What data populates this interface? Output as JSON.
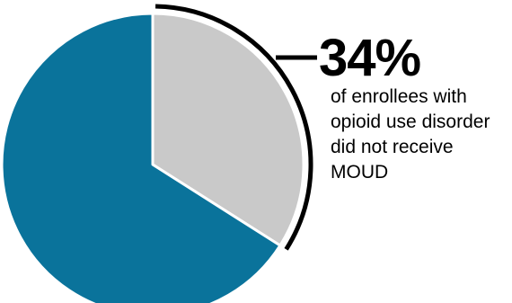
{
  "chart_data": {
    "type": "pie",
    "slices": [
      {
        "value": 34,
        "color": "#c9c9c9",
        "highlighted": true
      },
      {
        "value": 66,
        "color": "#0a739b",
        "highlighted": false
      }
    ],
    "callout": {
      "value_label": "34%",
      "caption_lines": [
        "of enrollees with",
        "opioid use disorder",
        "did not receive",
        "MOUD"
      ]
    }
  },
  "colors": {
    "highlight_arc": "#000000",
    "slice_border": "#ffffff"
  }
}
